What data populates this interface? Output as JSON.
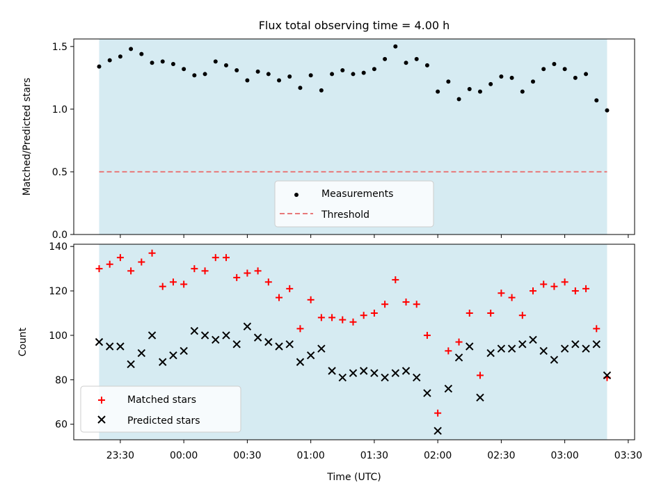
{
  "figure_title": "Flux total observing time = 4.00 h",
  "colors": {
    "band": "#add8e6",
    "measurement": "#000000",
    "threshold": "#e8797a",
    "matched": "#ff0000",
    "predicted": "#000000"
  },
  "chart_data": [
    {
      "type": "scatter",
      "title": "Flux total observing time = 4.00 h",
      "ylabel": "Matched/Predicted stars",
      "xlabel": "",
      "ylim": [
        0.0,
        1.56
      ],
      "xlim": [
        "23:08",
        "03:33"
      ],
      "yticks": [
        0.0,
        0.5,
        1.0,
        1.5
      ],
      "ytick_labels": [
        "0.0",
        "0.5",
        "1.0",
        "1.5"
      ],
      "shaded_span": [
        "23:20",
        "03:20"
      ],
      "grid": false,
      "legend_position": "lower-center",
      "legend": [
        "Measurements",
        "Threshold"
      ],
      "threshold": 0.5,
      "series": [
        {
          "name": "Measurements",
          "x": [
            "23:20",
            "23:25",
            "23:30",
            "23:35",
            "23:40",
            "23:45",
            "23:50",
            "23:55",
            "00:00",
            "00:05",
            "00:10",
            "00:15",
            "00:20",
            "00:25",
            "00:30",
            "00:35",
            "00:40",
            "00:45",
            "00:50",
            "00:55",
            "01:00",
            "01:05",
            "01:10",
            "01:15",
            "01:20",
            "01:25",
            "01:30",
            "01:35",
            "01:40",
            "01:45",
            "01:50",
            "01:55",
            "02:00",
            "02:05",
            "02:10",
            "02:15",
            "02:20",
            "02:25",
            "02:30",
            "02:35",
            "02:40",
            "02:45",
            "02:50",
            "02:55",
            "03:00",
            "03:05",
            "03:10",
            "03:15",
            "03:20"
          ],
          "y": [
            1.34,
            1.39,
            1.42,
            1.48,
            1.44,
            1.37,
            1.38,
            1.36,
            1.32,
            1.27,
            1.28,
            1.38,
            1.35,
            1.31,
            1.23,
            1.3,
            1.28,
            1.23,
            1.26,
            1.17,
            1.27,
            1.15,
            1.28,
            1.31,
            1.28,
            1.29,
            1.32,
            1.4,
            1.5,
            1.37,
            1.4,
            1.35,
            1.14,
            1.22,
            1.08,
            1.16,
            1.14,
            1.2,
            1.26,
            1.25,
            1.14,
            1.22,
            1.32,
            1.36,
            1.32,
            1.25,
            1.28,
            1.07,
            0.99
          ]
        },
        {
          "name": "Threshold",
          "x": [
            "23:20",
            "03:20"
          ],
          "y": [
            0.5,
            0.5
          ]
        }
      ]
    },
    {
      "type": "scatter",
      "title": "",
      "ylabel": "Count",
      "xlabel": "Time (UTC)",
      "ylim": [
        53,
        141
      ],
      "xlim": [
        "23:08",
        "03:33"
      ],
      "yticks": [
        60,
        80,
        100,
        120,
        140
      ],
      "xtick_labels": [
        "23:30",
        "00:00",
        "00:30",
        "01:00",
        "01:30",
        "02:00",
        "02:30",
        "03:00",
        "03:30"
      ],
      "shaded_span": [
        "23:20",
        "03:20"
      ],
      "grid": false,
      "legend_position": "lower-left",
      "legend": [
        "Matched stars",
        "Predicted stars"
      ],
      "series": [
        {
          "name": "Matched stars",
          "x": [
            "23:20",
            "23:25",
            "23:30",
            "23:35",
            "23:40",
            "23:45",
            "23:50",
            "23:55",
            "00:00",
            "00:05",
            "00:10",
            "00:15",
            "00:20",
            "00:25",
            "00:30",
            "00:35",
            "00:40",
            "00:45",
            "00:50",
            "00:55",
            "01:00",
            "01:05",
            "01:10",
            "01:15",
            "01:20",
            "01:25",
            "01:30",
            "01:35",
            "01:40",
            "01:45",
            "01:50",
            "01:55",
            "02:00",
            "02:05",
            "02:10",
            "02:15",
            "02:20",
            "02:25",
            "02:30",
            "02:35",
            "02:40",
            "02:45",
            "02:50",
            "02:55",
            "03:00",
            "03:05",
            "03:10",
            "03:15",
            "03:20"
          ],
          "y": [
            130,
            132,
            135,
            129,
            133,
            137,
            122,
            124,
            123,
            130,
            129,
            135,
            135,
            126,
            128,
            129,
            124,
            117,
            121,
            103,
            116,
            108,
            108,
            107,
            106,
            109,
            110,
            114,
            125,
            115,
            114,
            100,
            65,
            93,
            97,
            110,
            82,
            110,
            119,
            117,
            109,
            120,
            123,
            122,
            124,
            120,
            121,
            103,
            81
          ]
        },
        {
          "name": "Predicted stars",
          "x": [
            "23:20",
            "23:25",
            "23:30",
            "23:35",
            "23:40",
            "23:45",
            "23:50",
            "23:55",
            "00:00",
            "00:05",
            "00:10",
            "00:15",
            "00:20",
            "00:25",
            "00:30",
            "00:35",
            "00:40",
            "00:45",
            "00:50",
            "00:55",
            "01:00",
            "01:05",
            "01:10",
            "01:15",
            "01:20",
            "01:25",
            "01:30",
            "01:35",
            "01:40",
            "01:45",
            "01:50",
            "01:55",
            "02:00",
            "02:05",
            "02:10",
            "02:15",
            "02:20",
            "02:25",
            "02:30",
            "02:35",
            "02:40",
            "02:45",
            "02:50",
            "02:55",
            "03:00",
            "03:05",
            "03:10",
            "03:15",
            "03:20"
          ],
          "y": [
            97,
            95,
            95,
            87,
            92,
            100,
            88,
            91,
            93,
            102,
            100,
            98,
            100,
            96,
            104,
            99,
            97,
            95,
            96,
            88,
            91,
            94,
            84,
            81,
            83,
            84,
            83,
            81,
            83,
            84,
            81,
            74,
            57,
            76,
            90,
            95,
            72,
            92,
            94,
            94,
            96,
            98,
            93,
            89,
            94,
            96,
            94,
            96,
            82
          ]
        }
      ]
    }
  ]
}
